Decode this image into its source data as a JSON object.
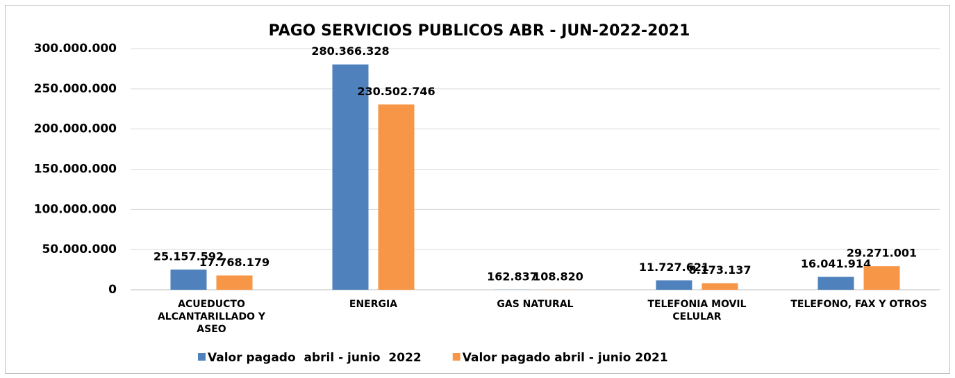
{
  "chart_data": {
    "type": "bar",
    "title": "PAGO SERVICIOS PUBLICOS ABR - JUN-2022-2021",
    "categories": [
      "ACUEDUCTO ALCANTARILLADO Y ASEO",
      "ENERGIA",
      "GAS NATURAL",
      "TELEFONIA MOVIL CELULAR",
      "TELEFONO, FAX Y OTROS"
    ],
    "series": [
      {
        "name": "Valor pagado  abril - junio  2022",
        "color": "#4f81bd",
        "values": [
          25157592,
          280366328,
          162837,
          11727621,
          16041914
        ],
        "value_labels": [
          "25.157.592",
          "280.366.328",
          "162.837",
          "11.727.621",
          "16.041.914"
        ]
      },
      {
        "name": "Valor pagado abril - junio 2021",
        "color": "#f79646",
        "values": [
          17768179,
          230502746,
          108820,
          8173137,
          29271001
        ],
        "value_labels": [
          "17.768.179",
          "230.502.746",
          "108.820",
          "8.173.137",
          "29.271.001"
        ]
      }
    ],
    "ylim": [
      0,
      300000000
    ],
    "yticks": [
      0,
      {
        "value": 50000000,
        "label": "50.000.000"
      },
      {
        "value": 100000000,
        "label": "100.000.000"
      },
      {
        "value": 150000000,
        "label": "150.000.000"
      },
      {
        "value": 200000000,
        "label": "200.000.000"
      },
      {
        "value": 250000000,
        "label": "250.000.000"
      },
      {
        "value": 300000000,
        "label": "300.000.000"
      }
    ],
    "grid": true,
    "legend": "bottom"
  }
}
